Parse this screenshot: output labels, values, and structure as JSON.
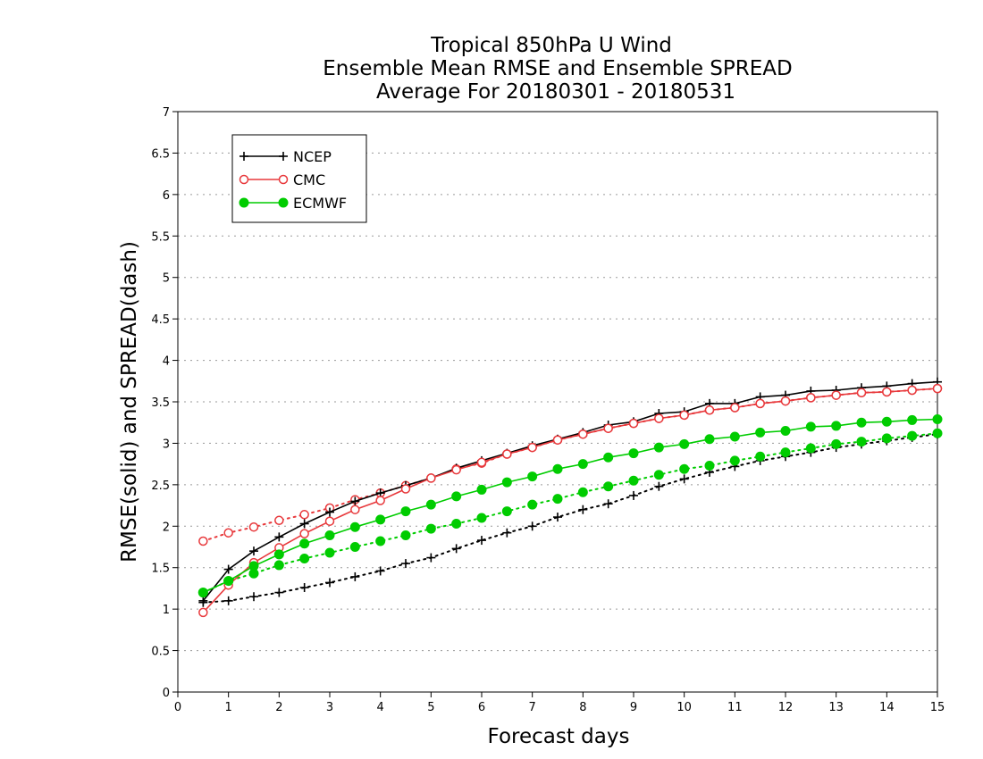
{
  "chart_data": {
    "type": "line",
    "title": [
      "Tropical 850hPa U Wind",
      "Ensemble Mean RMSE and Ensemble SPREAD",
      "Average For 20180301 - 20180531"
    ],
    "xlabel": "Forecast days",
    "ylabel": "RMSE(solid) and SPREAD(dash)",
    "xlim": [
      0,
      15
    ],
    "ylim": [
      0,
      7
    ],
    "xticks": [
      0,
      1,
      2,
      3,
      4,
      5,
      6,
      7,
      8,
      9,
      10,
      11,
      12,
      13,
      14,
      15
    ],
    "yticks": [
      0,
      0.5,
      1,
      1.5,
      2,
      2.5,
      3,
      3.5,
      4,
      4.5,
      5,
      5.5,
      6,
      6.5,
      7
    ],
    "ytick_labels": [
      "0",
      "0.5",
      "1",
      "1.5",
      "2",
      "2.5",
      "3",
      "3.5",
      "4",
      "4.5",
      "5",
      "5.5",
      "6",
      "6.5",
      "7"
    ],
    "grid": "horizontal dotted",
    "legend_position": "top-left",
    "x": [
      0.5,
      1,
      1.5,
      2,
      2.5,
      3,
      3.5,
      4,
      4.5,
      5,
      5.5,
      6,
      6.5,
      7,
      7.5,
      8,
      8.5,
      9,
      9.5,
      10,
      10.5,
      11,
      11.5,
      12,
      12.5,
      13,
      13.5,
      14,
      14.5,
      15
    ],
    "series": [
      {
        "name": "NCEP",
        "color": "#000000",
        "marker": "plus",
        "rmse": [
          1.1,
          1.48,
          1.7,
          1.87,
          2.03,
          2.17,
          2.3,
          2.4,
          2.49,
          2.58,
          2.7,
          2.79,
          2.88,
          2.97,
          3.05,
          3.13,
          3.22,
          3.26,
          3.36,
          3.38,
          3.48,
          3.48,
          3.56,
          3.58,
          3.63,
          3.64,
          3.67,
          3.69,
          3.72,
          3.74
        ],
        "spread": [
          1.08,
          1.1,
          1.15,
          1.2,
          1.26,
          1.32,
          1.39,
          1.46,
          1.55,
          1.62,
          1.73,
          1.83,
          1.92,
          2.0,
          2.11,
          2.2,
          2.27,
          2.37,
          2.48,
          2.57,
          2.65,
          2.72,
          2.79,
          2.84,
          2.89,
          2.95,
          2.99,
          3.03,
          3.07,
          3.11
        ]
      },
      {
        "name": "CMC",
        "color": "#e8393c",
        "marker": "open-circle",
        "rmse": [
          0.96,
          1.29,
          1.56,
          1.74,
          1.91,
          2.06,
          2.2,
          2.31,
          2.45,
          2.58,
          2.68,
          2.77,
          2.87,
          2.95,
          3.04,
          3.11,
          3.18,
          3.24,
          3.3,
          3.34,
          3.4,
          3.43,
          3.48,
          3.51,
          3.55,
          3.58,
          3.61,
          3.62,
          3.64,
          3.66
        ],
        "spread": [
          1.82,
          1.92,
          1.99,
          2.07,
          2.14,
          2.22,
          2.32,
          2.4,
          2.49,
          2.58,
          2.69,
          2.76,
          2.87,
          2.95,
          3.04,
          3.11,
          3.18,
          3.24,
          3.3,
          3.34,
          3.4,
          3.43,
          3.48,
          3.51,
          3.55,
          3.58,
          3.61,
          3.62,
          3.64,
          3.66
        ]
      },
      {
        "name": "ECMWF",
        "color": "#00cc00",
        "marker": "filled-circle",
        "rmse": [
          1.2,
          1.34,
          1.52,
          1.66,
          1.79,
          1.89,
          1.99,
          2.08,
          2.18,
          2.26,
          2.36,
          2.44,
          2.53,
          2.6,
          2.69,
          2.75,
          2.83,
          2.88,
          2.95,
          2.99,
          3.05,
          3.08,
          3.13,
          3.15,
          3.2,
          3.21,
          3.25,
          3.26,
          3.28,
          3.29
        ],
        "spread": [
          1.2,
          1.34,
          1.43,
          1.53,
          1.61,
          1.68,
          1.75,
          1.82,
          1.89,
          1.97,
          2.03,
          2.1,
          2.18,
          2.26,
          2.33,
          2.41,
          2.48,
          2.55,
          2.62,
          2.69,
          2.73,
          2.79,
          2.84,
          2.89,
          2.94,
          2.99,
          3.02,
          3.06,
          3.09,
          3.12
        ]
      }
    ]
  }
}
